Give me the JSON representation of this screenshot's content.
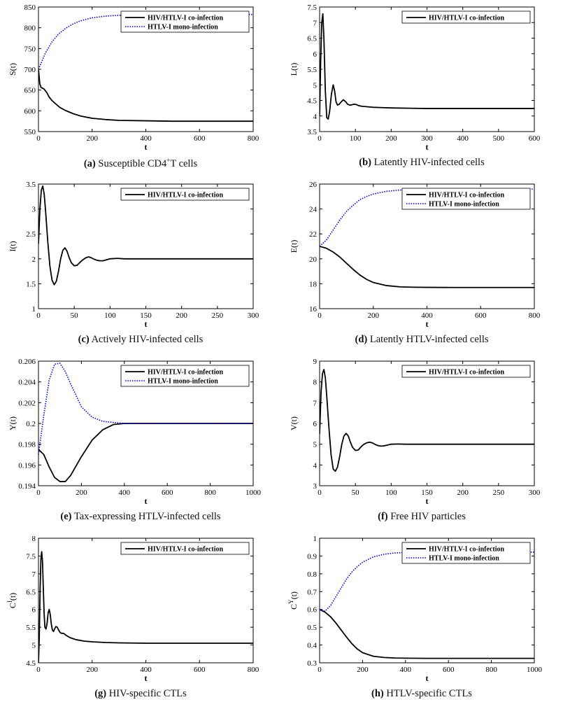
{
  "colors": {
    "coinfection": "#000000",
    "mono": "#0000cc"
  },
  "legend_labels": {
    "co": "HIV/HTLV-I co-infection",
    "mono": "HTLV-I mono-infection"
  },
  "chart_data": [
    {
      "id": "a",
      "type": "line",
      "caption_letter": "(a)",
      "caption_pre": "Susceptible CD4",
      "caption_sup": "+",
      "caption_post": "T cells",
      "xlabel": "t",
      "ylabel": "S(t)",
      "ylabel_sup": "",
      "xlim": [
        0,
        800
      ],
      "ylim": [
        550,
        850
      ],
      "xticks": [
        0,
        200,
        400,
        600,
        800
      ],
      "yticks": [
        550,
        600,
        650,
        700,
        750,
        800,
        850
      ],
      "series": [
        {
          "name": "HIV/HTLV-I co-infection",
          "style": "solid",
          "x": [
            0,
            5,
            10,
            20,
            30,
            40,
            50,
            60,
            80,
            100,
            130,
            160,
            200,
            250,
            300,
            400,
            500,
            600,
            800
          ],
          "y": [
            700,
            665,
            656,
            653,
            645,
            633,
            625,
            619,
            608,
            601,
            593,
            587,
            582,
            579,
            577,
            576,
            575,
            575,
            575
          ]
        },
        {
          "name": "HTLV-I mono-infection",
          "style": "dotted",
          "x": [
            0,
            25,
            50,
            75,
            100,
            125,
            150,
            175,
            200,
            250,
            300,
            350,
            400,
            500,
            600,
            800
          ],
          "y": [
            700,
            738,
            766,
            785,
            798,
            808,
            815,
            820,
            824,
            828,
            830,
            831,
            831,
            832,
            832,
            832
          ]
        }
      ],
      "legend": "top-right"
    },
    {
      "id": "b",
      "type": "line",
      "caption_letter": "(b)",
      "caption_pre": "Latently HIV-infected cells",
      "caption_sup": "",
      "caption_post": "",
      "xlabel": "t",
      "ylabel": "L(t)",
      "ylabel_sup": "",
      "xlim": [
        0,
        600
      ],
      "ylim": [
        3.5,
        7.5
      ],
      "xticks": [
        0,
        100,
        200,
        300,
        400,
        500,
        600
      ],
      "yticks": [
        3.5,
        4,
        4.5,
        5,
        5.5,
        6,
        6.5,
        7,
        7.5
      ],
      "series": [
        {
          "name": "HIV/HTLV-I co-infection",
          "style": "solid",
          "x": [
            0,
            3,
            6,
            9,
            12,
            16,
            20,
            24,
            28,
            33,
            38,
            42,
            46,
            50,
            55,
            60,
            66,
            72,
            78,
            84,
            90,
            96,
            102,
            110,
            120,
            130,
            140,
            150,
            175,
            200,
            250,
            300,
            400,
            500,
            600
          ],
          "y": [
            4.0,
            5.8,
            7.0,
            7.28,
            6.5,
            4.8,
            3.95,
            3.9,
            4.15,
            4.7,
            5.0,
            4.8,
            4.45,
            4.35,
            4.38,
            4.45,
            4.52,
            4.47,
            4.38,
            4.35,
            4.36,
            4.38,
            4.37,
            4.33,
            4.31,
            4.3,
            4.29,
            4.28,
            4.27,
            4.26,
            4.25,
            4.24,
            4.24,
            4.24,
            4.24
          ]
        }
      ],
      "legend": "top-right"
    },
    {
      "id": "c",
      "type": "line",
      "caption_letter": "(c)",
      "caption_pre": "Actively HIV-infected cells",
      "caption_sup": "",
      "caption_post": "",
      "xlabel": "t",
      "ylabel": "I(t)",
      "ylabel_sup": "",
      "xlim": [
        0,
        300
      ],
      "ylim": [
        1,
        3.5
      ],
      "xticks": [
        0,
        50,
        100,
        150,
        200,
        250,
        300
      ],
      "yticks": [
        1,
        1.5,
        2,
        2.5,
        3,
        3.5
      ],
      "series": [
        {
          "name": "HIV/HTLV-I co-infection",
          "style": "solid",
          "x": [
            0,
            2,
            4,
            6,
            8,
            10,
            13,
            16,
            19,
            22,
            25,
            28,
            31,
            34,
            37,
            40,
            43,
            46,
            50,
            54,
            58,
            62,
            66,
            70,
            74,
            78,
            82,
            86,
            90,
            95,
            100,
            110,
            120,
            140,
            160,
            200,
            250,
            300
          ],
          "y": [
            2.3,
            3.0,
            3.38,
            3.46,
            3.3,
            2.95,
            2.35,
            1.85,
            1.57,
            1.48,
            1.55,
            1.75,
            2.0,
            2.17,
            2.22,
            2.15,
            2.02,
            1.92,
            1.86,
            1.87,
            1.93,
            1.98,
            2.02,
            2.04,
            2.02,
            1.99,
            1.97,
            1.96,
            1.96,
            1.98,
            2.0,
            2.01,
            2.0,
            2.0,
            2.0,
            2.0,
            2.0,
            2.0
          ]
        }
      ],
      "legend": "top-right"
    },
    {
      "id": "d",
      "type": "line",
      "caption_letter": "(d)",
      "caption_pre": "Latently HTLV-infected cells",
      "caption_sup": "",
      "caption_post": "",
      "xlabel": "t",
      "ylabel": "E(t)",
      "ylabel_sup": "",
      "xlim": [
        0,
        800
      ],
      "ylim": [
        16,
        26
      ],
      "xticks": [
        0,
        200,
        400,
        600,
        800
      ],
      "yticks": [
        16,
        18,
        20,
        22,
        24,
        26
      ],
      "series": [
        {
          "name": "HIV/HTLV-I co-infection",
          "style": "solid",
          "x": [
            0,
            25,
            50,
            75,
            100,
            125,
            150,
            175,
            200,
            250,
            300,
            350,
            400,
            500,
            600,
            800
          ],
          "y": [
            21.0,
            20.85,
            20.55,
            20.15,
            19.65,
            19.15,
            18.7,
            18.35,
            18.1,
            17.85,
            17.75,
            17.72,
            17.71,
            17.7,
            17.7,
            17.7
          ]
        },
        {
          "name": "HTLV-I mono-infection",
          "style": "dotted",
          "x": [
            0,
            25,
            50,
            75,
            100,
            125,
            150,
            175,
            200,
            250,
            300,
            350,
            400,
            500,
            600,
            800
          ],
          "y": [
            21.0,
            21.5,
            22.3,
            23.1,
            23.8,
            24.3,
            24.75,
            25.0,
            25.2,
            25.42,
            25.52,
            25.57,
            25.59,
            25.6,
            25.6,
            25.6
          ]
        }
      ],
      "legend": "top-right"
    },
    {
      "id": "e",
      "type": "line",
      "caption_letter": "(e)",
      "caption_pre": "Tax-expressing HTLV-infected cells",
      "caption_sup": "",
      "caption_post": "",
      "xlabel": "t",
      "ylabel": "Y(t)",
      "ylabel_sup": "",
      "xlim": [
        0,
        1000
      ],
      "ylim": [
        0.194,
        0.206
      ],
      "xticks": [
        0,
        200,
        400,
        600,
        800,
        1000
      ],
      "yticks": [
        0.194,
        0.196,
        0.198,
        0.2,
        0.202,
        0.204,
        0.206
      ],
      "series": [
        {
          "name": "HIV/HTLV-I co-infection",
          "style": "solid",
          "x": [
            0,
            25,
            50,
            75,
            100,
            125,
            150,
            200,
            250,
            300,
            350,
            400,
            450,
            500,
            600,
            800,
            1000
          ],
          "y": [
            0.1975,
            0.197,
            0.1958,
            0.1948,
            0.1944,
            0.1944,
            0.195,
            0.1968,
            0.1984,
            0.1994,
            0.1999,
            0.2,
            0.2,
            0.2,
            0.2,
            0.2,
            0.2
          ]
        },
        {
          "name": "HTLV-I mono-infection",
          "style": "dotted",
          "x": [
            0,
            25,
            50,
            75,
            100,
            125,
            150,
            200,
            250,
            300,
            350,
            400,
            450,
            500,
            600,
            800,
            1000
          ],
          "y": [
            0.197,
            0.2008,
            0.2042,
            0.2057,
            0.2058,
            0.205,
            0.2038,
            0.2016,
            0.2006,
            0.2002,
            0.2001,
            0.2,
            0.2,
            0.2,
            0.2,
            0.2,
            0.2
          ]
        }
      ],
      "legend": "top-right"
    },
    {
      "id": "f",
      "type": "line",
      "caption_letter": "(f)",
      "caption_pre": "Free HIV particles",
      "caption_sup": "",
      "caption_post": "",
      "xlabel": "t",
      "ylabel": "V(t)",
      "ylabel_sup": "",
      "xlim": [
        0,
        300
      ],
      "ylim": [
        3,
        9
      ],
      "xticks": [
        0,
        50,
        100,
        150,
        200,
        250,
        300
      ],
      "yticks": [
        3,
        4,
        5,
        6,
        7,
        8,
        9
      ],
      "series": [
        {
          "name": "HIV/HTLV-I co-infection",
          "style": "solid",
          "x": [
            0,
            2,
            4,
            6,
            8,
            10,
            13,
            16,
            19,
            22,
            25,
            28,
            31,
            34,
            37,
            40,
            43,
            46,
            50,
            54,
            58,
            62,
            66,
            70,
            74,
            78,
            82,
            86,
            90,
            95,
            100,
            110,
            120,
            140,
            160,
            200,
            250,
            300
          ],
          "y": [
            5.5,
            7.5,
            8.4,
            8.6,
            8.2,
            7.3,
            5.8,
            4.5,
            3.8,
            3.7,
            3.9,
            4.4,
            5.0,
            5.4,
            5.52,
            5.4,
            5.1,
            4.85,
            4.7,
            4.72,
            4.88,
            5.0,
            5.07,
            5.1,
            5.06,
            4.98,
            4.93,
            4.91,
            4.92,
            4.96,
            5.0,
            5.01,
            5.0,
            5.0,
            5.0,
            5.0,
            5.0,
            5.0
          ]
        }
      ],
      "legend": "top-right"
    },
    {
      "id": "g",
      "type": "line",
      "caption_letter": "(g)",
      "caption_pre": "HIV-specific CTLs",
      "caption_sup": "",
      "caption_post": "",
      "xlabel": "t",
      "ylabel": "C",
      "ylabel_sup": "I",
      "ylabel_post": "(t)",
      "xlim": [
        0,
        800
      ],
      "ylim": [
        4.5,
        8
      ],
      "xticks": [
        0,
        200,
        400,
        600,
        800
      ],
      "yticks": [
        4.5,
        5,
        5.5,
        6,
        6.5,
        7,
        7.5,
        8
      ],
      "series": [
        {
          "name": "HIV/HTLV-I co-infection",
          "style": "solid",
          "x": [
            0,
            3,
            6,
            9,
            12,
            15,
            18,
            21,
            24,
            28,
            32,
            36,
            40,
            44,
            48,
            52,
            56,
            60,
            65,
            70,
            75,
            80,
            85,
            90,
            95,
            100,
            110,
            120,
            140,
            170,
            200,
            250,
            300,
            400,
            500,
            600,
            800
          ],
          "y": [
            4.5,
            5.2,
            6.5,
            7.4,
            7.62,
            7.35,
            6.6,
            5.9,
            5.5,
            5.45,
            5.6,
            5.9,
            6.0,
            5.85,
            5.58,
            5.42,
            5.38,
            5.45,
            5.52,
            5.5,
            5.42,
            5.36,
            5.33,
            5.33,
            5.32,
            5.29,
            5.24,
            5.2,
            5.15,
            5.11,
            5.09,
            5.07,
            5.06,
            5.05,
            5.05,
            5.05,
            5.05
          ]
        }
      ],
      "legend": "top-right"
    },
    {
      "id": "h",
      "type": "line",
      "caption_letter": "(h)",
      "caption_pre": "HTLV-specific CTLs",
      "caption_sup": "",
      "caption_post": "",
      "xlabel": "t",
      "ylabel": "C",
      "ylabel_sup": "Y",
      "ylabel_post": "(t)",
      "xlim": [
        0,
        1000
      ],
      "ylim": [
        0.3,
        1
      ],
      "xticks": [
        0,
        200,
        400,
        600,
        800,
        1000
      ],
      "yticks": [
        0.3,
        0.4,
        0.5,
        0.6,
        0.7,
        0.8,
        0.9,
        1
      ],
      "series": [
        {
          "name": "HIV/HTLV-I co-infection",
          "style": "solid",
          "x": [
            0,
            25,
            50,
            75,
            100,
            125,
            150,
            175,
            200,
            250,
            300,
            350,
            400,
            500,
            600,
            800,
            1000
          ],
          "y": [
            0.6,
            0.585,
            0.56,
            0.525,
            0.485,
            0.445,
            0.408,
            0.378,
            0.357,
            0.337,
            0.33,
            0.327,
            0.326,
            0.325,
            0.325,
            0.325,
            0.325
          ]
        },
        {
          "name": "HTLV-I mono-infection",
          "style": "dotted",
          "x": [
            0,
            25,
            50,
            75,
            100,
            125,
            150,
            175,
            200,
            250,
            300,
            350,
            400,
            500,
            600,
            800,
            1000
          ],
          "y": [
            0.6,
            0.59,
            0.62,
            0.67,
            0.72,
            0.77,
            0.81,
            0.84,
            0.865,
            0.895,
            0.91,
            0.917,
            0.92,
            0.922,
            0.922,
            0.922,
            0.922
          ]
        }
      ],
      "legend": "top-right"
    }
  ]
}
